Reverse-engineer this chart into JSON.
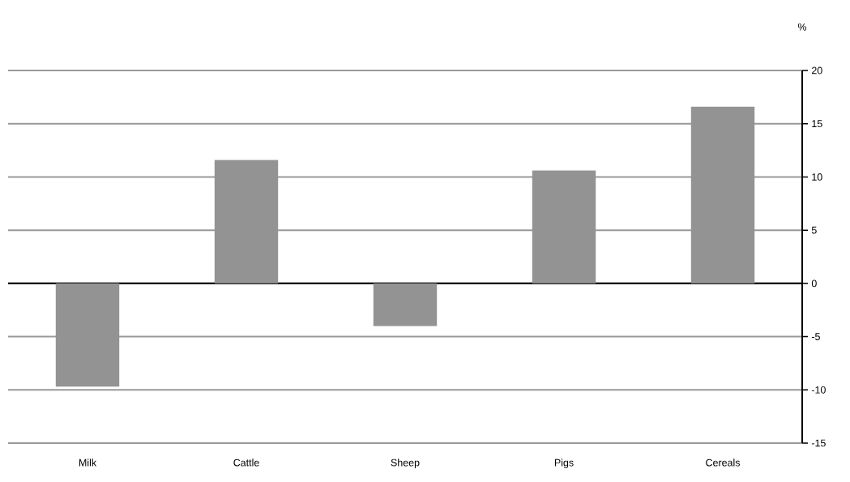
{
  "chart_data": {
    "type": "bar",
    "ylabel": "%",
    "categories": [
      "Milk",
      "Cattle",
      "Sheep",
      "Pigs",
      "Cereals"
    ],
    "values": [
      -9.7,
      11.6,
      -4.0,
      10.6,
      16.6
    ],
    "color": "#939393",
    "ylim": [
      -15,
      20
    ],
    "yticks": [
      -15,
      -10,
      -5,
      0,
      5,
      10,
      15,
      20
    ],
    "grid": "y"
  }
}
